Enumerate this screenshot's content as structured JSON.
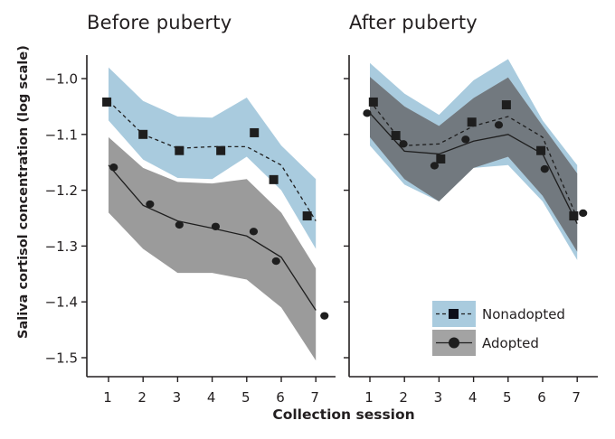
{
  "chart_data": {
    "type": "line",
    "ylabel": "Saliva cortisol concentration (log scale)",
    "xlabel": "Collection session",
    "x": [
      1,
      2,
      3,
      4,
      5,
      6,
      7
    ],
    "xticks": [
      "1",
      "2",
      "3",
      "4",
      "5",
      "6",
      "7"
    ],
    "yticks": [
      "−1.0",
      "−1.1",
      "−1.2",
      "−1.3",
      "−1.4",
      "−1.5"
    ],
    "ytick_values": [
      -1.0,
      -1.1,
      -1.2,
      -1.3,
      -1.4,
      -1.5
    ],
    "ylim": [
      -1.535,
      -0.94
    ],
    "grid": false,
    "legend_position": "inside lower right of right panel",
    "legend": [
      {
        "name": "Nonadopted",
        "marker": "square",
        "line": "dashed",
        "band_color": "#a9cbde"
      },
      {
        "name": "Adopted",
        "marker": "circle",
        "line": "solid",
        "band_color": "#9b9b9b"
      }
    ],
    "panels": [
      {
        "title": "Before puberty",
        "series": [
          {
            "name": "Nonadopted",
            "observed": [
              -1.042,
              -1.1,
              -1.129,
              -1.129,
              -1.097,
              -1.181,
              -1.246
            ],
            "observed_x": [
              0.95,
              2.0,
              3.05,
              4.25,
              5.22,
              5.78,
              6.75
            ],
            "fitted": [
              -1.04,
              -1.1,
              -1.125,
              -1.122,
              -1.122,
              -1.155,
              -1.255
            ],
            "ci_upper": [
              -0.98,
              -1.04,
              -1.068,
              -1.07,
              -1.034,
              -1.12,
              -1.18
            ],
            "ci_lower": [
              -1.075,
              -1.145,
              -1.178,
              -1.18,
              -1.14,
              -1.2,
              -1.305
            ]
          },
          {
            "name": "Adopted",
            "observed": [
              -1.159,
              -1.225,
              -1.262,
              -1.265,
              -1.274,
              -1.327,
              -1.425
            ],
            "observed_x": [
              1.15,
              2.2,
              3.05,
              4.1,
              5.2,
              5.85,
              7.25
            ],
            "fitted": [
              -1.155,
              -1.227,
              -1.255,
              -1.268,
              -1.282,
              -1.32,
              -1.415
            ],
            "ci_upper": [
              -1.105,
              -1.16,
              -1.185,
              -1.188,
              -1.18,
              -1.24,
              -1.34
            ],
            "ci_lower": [
              -1.24,
              -1.305,
              -1.348,
              -1.348,
              -1.36,
              -1.41,
              -1.505
            ]
          }
        ]
      },
      {
        "title": "After puberty",
        "series": [
          {
            "name": "Nonadopted",
            "observed": [
              -1.042,
              -1.102,
              -1.144,
              -1.078,
              -1.047,
              -1.129,
              -1.246
            ],
            "observed_x": [
              1.1,
              1.75,
              3.05,
              3.95,
              4.95,
              5.95,
              6.9
            ],
            "fitted": [
              -1.04,
              -1.12,
              -1.117,
              -1.085,
              -1.068,
              -1.105,
              -1.25
            ],
            "ci_upper": [
              -0.972,
              -1.027,
              -1.065,
              -1.003,
              -0.965,
              -1.075,
              -1.155
            ],
            "ci_lower": [
              -1.12,
              -1.19,
              -1.22,
              -1.16,
              -1.155,
              -1.22,
              -1.325
            ]
          },
          {
            "name": "Adopted",
            "observed": [
              -1.062,
              -1.117,
              -1.156,
              -1.109,
              -1.083,
              -1.162,
              -1.241
            ],
            "observed_x": [
              0.92,
              1.97,
              2.87,
              3.77,
              4.73,
              6.06,
              7.17
            ],
            "fitted": [
              -1.062,
              -1.13,
              -1.135,
              -1.112,
              -1.1,
              -1.135,
              -1.26
            ],
            "ci_upper": [
              -0.997,
              -1.05,
              -1.085,
              -1.035,
              -0.998,
              -1.085,
              -1.17
            ],
            "ci_lower": [
              -1.105,
              -1.18,
              -1.22,
              -1.16,
              -1.14,
              -1.21,
              -1.31
            ]
          }
        ]
      }
    ]
  },
  "colors": {
    "nonadopted_band": "#a9cbde",
    "adopted_band": "#9b9b9b",
    "overlap_band": "#72797f",
    "axis": "#231f20",
    "marker": "#1e1e1e"
  }
}
